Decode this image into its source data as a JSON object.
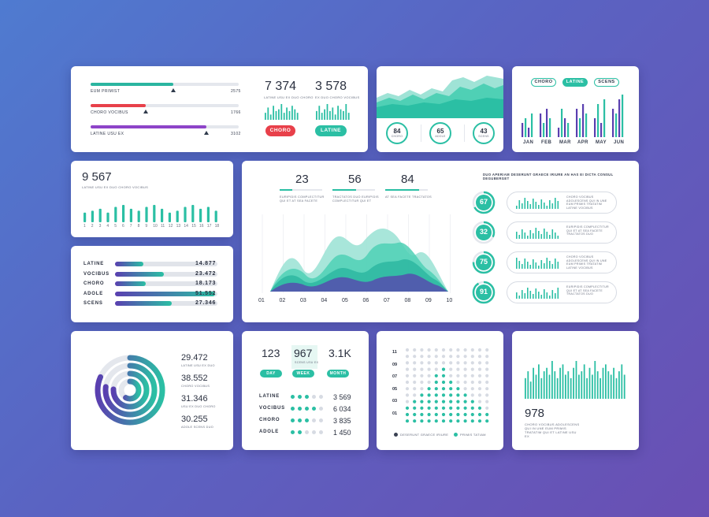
{
  "card_progress": {
    "rows": [
      {
        "label": "EUM PRIMIST",
        "value": "2575",
        "fill": 0.56,
        "marker": 0.56,
        "color": "#2bb5a0"
      },
      {
        "label": "CHORO VOCIBUS",
        "value": "1766",
        "fill": 0.37,
        "marker": 0.37,
        "color": "#e8404a"
      },
      {
        "label": "LATINE USU EX",
        "value": "3102",
        "fill": 0.78,
        "marker": 0.78,
        "color": "#8e44c8"
      }
    ],
    "stat1": {
      "value": "7 374",
      "caption": "LATINE USU EX DUO CHORO",
      "button": "CHORO"
    },
    "stat2": {
      "value": "3 578",
      "caption": "EX DUO CHORO VOCIBUS",
      "button": "LATINE"
    },
    "spark1": [
      4,
      7,
      3,
      8,
      5,
      6,
      9,
      4,
      7,
      5,
      8,
      6,
      4
    ],
    "spark2": [
      5,
      8,
      4,
      6,
      9,
      5,
      7,
      3,
      8,
      6,
      5,
      9,
      4
    ]
  },
  "card_area": {
    "circles": [
      {
        "value": "84",
        "label": "CHORO"
      },
      {
        "value": "65",
        "label": "ADOLE"
      },
      {
        "value": "43",
        "label": "SCENS"
      }
    ]
  },
  "card_months": {
    "pills": [
      "CHORO",
      "LATINE",
      "SCENS"
    ],
    "months": [
      "JAN",
      "FEB",
      "MAR",
      "APR",
      "MAY",
      "JUN"
    ],
    "bars": [
      [
        3,
        4,
        2,
        5
      ],
      [
        5,
        3,
        6,
        4
      ],
      [
        2,
        6,
        4,
        3
      ],
      [
        6,
        4,
        7,
        5
      ],
      [
        4,
        7,
        3,
        8
      ],
      [
        6,
        5,
        8,
        9
      ]
    ]
  },
  "card_9567": {
    "value": "9 567",
    "caption": "LATINE USU EX DUO CHORO VOCIBUS",
    "bars": [
      5,
      6,
      7,
      5,
      8,
      9,
      7,
      6,
      8,
      9,
      7,
      5,
      6,
      8,
      9,
      7,
      8,
      6
    ],
    "ticks": [
      "1",
      "2",
      "3",
      "4",
      "5",
      "6",
      "7",
      "8",
      "9",
      "10",
      "11",
      "12",
      "13",
      "14",
      "15",
      "16",
      "17",
      "18"
    ]
  },
  "card_hbars": {
    "rows": [
      {
        "label": "LATINE",
        "value": "14.877",
        "fill": 0.28
      },
      {
        "label": "VOCIBUS",
        "value": "23.472",
        "fill": 0.48
      },
      {
        "label": "CHORO",
        "value": "18.173",
        "fill": 0.3
      },
      {
        "label": "ADOLE",
        "value": "51.552",
        "fill": 0.98
      },
      {
        "label": "SCENS",
        "value": "27.346",
        "fill": 0.55
      }
    ]
  },
  "card_main": {
    "kpis": [
      {
        "value": "23",
        "caption": "EURIPIDIS COMPLECTITUR QUI ET AT SEA FACETE",
        "fill": 0.3
      },
      {
        "value": "56",
        "caption": "TRACTATOS DUO EURIPIDIS COMPLECTITUR QUI ET",
        "fill": 0.55
      },
      {
        "value": "84",
        "caption": "AT SEA FACETE TRACTATOS",
        "fill": 0.8
      }
    ],
    "x_ticks": [
      "01",
      "02",
      "03",
      "04",
      "05",
      "06",
      "07",
      "08",
      "09",
      "10"
    ],
    "right_title": "DUO APERIAM DESERUNT GRAECE IRIURE AN HAS EI DICTA CONSUL DEGUBERGET",
    "right_rows": [
      {
        "value": "67",
        "caption": "CHORO VOCIBUS ADOLESCENS QUI IN UNE EUM PRIMIS TRATATIM LATINE VOCIBUS",
        "ring": 0.67
      },
      {
        "value": "32",
        "caption": "EURIPIDIS COMPLECTITUR QUI ET AT SEA FACETE TRACTATOS DUO",
        "ring": 0.32
      },
      {
        "value": "75",
        "caption": "CHORO VOCIBUS ADOLESCENS QUI IN UNE EUM PRIMIS TRATATIM LATINE VOCIBUS",
        "ring": 0.75
      },
      {
        "value": "91",
        "caption": "EURIPIDIS COMPLECTITUR QUI ET AT SEA FACETE TRACTATOS DUO",
        "ring": 0.91
      }
    ]
  },
  "card_rings": {
    "items": [
      {
        "value": "29.472",
        "caption": "LATINE USU EX DUO"
      },
      {
        "value": "38.552",
        "caption": "CHORO VOCIBUS"
      },
      {
        "value": "31.346",
        "caption": "USU EX DUO CHORO"
      },
      {
        "value": "30.255",
        "caption": "ADOLE SCENS DUO"
      }
    ]
  },
  "card_dots": {
    "stats": [
      {
        "value": "123",
        "button": "DAY"
      },
      {
        "value": "967",
        "button": "WEEK",
        "caption": "SCENS USU EX"
      },
      {
        "value": "3.1K",
        "button": "MONTH"
      }
    ],
    "rows": [
      {
        "label": "LATINE",
        "value": "3 569",
        "filled": 3
      },
      {
        "label": "VOCIBUS",
        "value": "6 034",
        "filled": 4
      },
      {
        "label": "CHORO",
        "value": "3 835",
        "filled": 3
      },
      {
        "label": "ADOLE",
        "value": "1 450",
        "filled": 2
      }
    ]
  },
  "card_grid": {
    "y_ticks": [
      "11",
      "09",
      "07",
      "05",
      "03",
      "01"
    ],
    "legend1": "DESERUNT GRAECE IRIURE",
    "legend2": "PRIMIS TATIAM",
    "column_heights": [
      3,
      4,
      5,
      6,
      8,
      9,
      7,
      6,
      5,
      4,
      3,
      2
    ]
  },
  "card_978": {
    "value": "978",
    "caption": "CHORO VOCIBUS ADOLESCENS QUI IN UNE EUM PRIMIS TRATATIM QUI ET LATINE USU EX",
    "bars": [
      6,
      8,
      5,
      9,
      7,
      10,
      6,
      8,
      9,
      7,
      11,
      8,
      6,
      9,
      10,
      7,
      8,
      6,
      9,
      11,
      7,
      8,
      10,
      6,
      9,
      7,
      11,
      8,
      6,
      9,
      10,
      8,
      7,
      9,
      6,
      8,
      10,
      7
    ]
  },
  "colors": {
    "teal": "#2bbfa4",
    "purple": "#5a3fb0",
    "red": "#e8404a",
    "grey": "#d7dbe3"
  }
}
